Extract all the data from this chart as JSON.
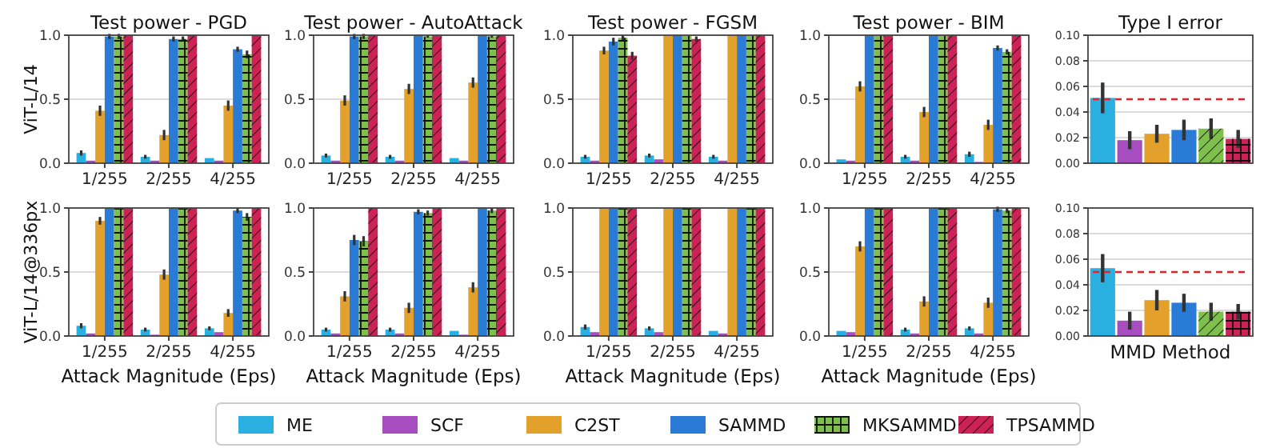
{
  "chart_data": [
    {
      "type": "bar",
      "title": "Test power - PGD",
      "ylabel": "ViT-L/14",
      "categories": [
        "1/255",
        "2/255",
        "4/255"
      ],
      "ylim": [
        0,
        1
      ],
      "yticks": [
        {
          "value": 0,
          "label": "0.0"
        },
        0.5,
        {
          "value": 1,
          "label": "1.0"
        }
      ],
      "grid": "y",
      "legend": "bottom",
      "series": [
        {
          "name": "ME",
          "color": "#2ab0e0",
          "values": [
            0.08,
            0.05,
            0.04
          ],
          "errors": [
            0.02,
            0.015,
            null
          ]
        },
        {
          "name": "SCF",
          "color": "#a64dbf",
          "values": [
            0.02,
            0.02,
            0.02
          ]
        },
        {
          "name": "C2ST",
          "color": "#e3a02a",
          "values": [
            0.41,
            0.22,
            0.45
          ],
          "errors": [
            0.04,
            0.04,
            0.04
          ]
        },
        {
          "name": "SAMMD",
          "color": "#2a7bd6",
          "values": [
            0.99,
            0.97,
            0.89
          ],
          "errors": [
            0.02,
            0.02,
            0.02
          ]
        },
        {
          "name": "MKSAMMD",
          "color": "#7fbf4d",
          "values": [
            0.99,
            0.97,
            0.85
          ],
          "errors": [
            0.02,
            0.02,
            0.03
          ]
        },
        {
          "name": "TPSAMMD",
          "color": "#cc2255",
          "values": [
            1,
            1,
            1
          ]
        }
      ]
    },
    {
      "type": "bar",
      "title": "Test power - AutoAttack",
      "categories": [
        "1/255",
        "2/255",
        "4/255"
      ],
      "ylim": [
        0,
        1
      ],
      "yticks": [
        {
          "value": 0,
          "label": "0.0"
        },
        0.5,
        {
          "value": 1,
          "label": "1.0"
        }
      ],
      "grid": "y",
      "series": [
        {
          "color": "#2ab0e0",
          "values": [
            0.06,
            0.05,
            0.04
          ],
          "errors": [
            0.015,
            0.015,
            null
          ]
        },
        {
          "color": "#a64dbf",
          "values": [
            0.02,
            0.02,
            0.02
          ]
        },
        {
          "color": "#e3a02a",
          "values": [
            0.49,
            0.58,
            0.63
          ],
          "errors": [
            0.04,
            0.04,
            0.04
          ]
        },
        {
          "color": "#2a7bd6",
          "values": [
            0.99,
            1,
            1
          ],
          "errors": [
            0.02,
            null,
            null
          ]
        },
        {
          "color": "#7fbf4d",
          "values": [
            0.99,
            0.99,
            0.99
          ],
          "errors": [
            0.02,
            0.01,
            0.01
          ]
        },
        {
          "color": "#cc2255",
          "values": [
            1,
            1,
            1
          ]
        }
      ]
    },
    {
      "type": "bar",
      "title": "Test power - FGSM",
      "categories": [
        "1/255",
        "2/255",
        "4/255"
      ],
      "ylim": [
        0,
        1
      ],
      "yticks": [
        {
          "value": 0,
          "label": "0.0"
        },
        0.5,
        {
          "value": 1,
          "label": "1.0"
        }
      ],
      "grid": "y",
      "series": [
        {
          "color": "#2ab0e0",
          "values": [
            0.05,
            0.06,
            0.05
          ],
          "errors": [
            0.015,
            0.015,
            0.015
          ]
        },
        {
          "color": "#a64dbf",
          "values": [
            0.02,
            0.03,
            0.02
          ]
        },
        {
          "color": "#e3a02a",
          "values": [
            0.88,
            1,
            1
          ],
          "errors": [
            0.03,
            null,
            null
          ]
        },
        {
          "color": "#2a7bd6",
          "values": [
            0.95,
            1,
            1
          ],
          "errors": [
            0.03,
            null,
            null
          ]
        },
        {
          "color": "#7fbf4d",
          "values": [
            0.98,
            1,
            1
          ],
          "errors": [
            0.02,
            null,
            null
          ]
        },
        {
          "color": "#cc2255",
          "values": [
            0.84,
            0.97,
            1
          ],
          "errors": [
            0.03,
            0.02,
            null
          ]
        }
      ]
    },
    {
      "type": "bar",
      "title": "Test power - BIM",
      "categories": [
        "1/255",
        "2/255",
        "4/255"
      ],
      "ylim": [
        0,
        1
      ],
      "yticks": [
        {
          "value": 0,
          "label": "0.0"
        },
        0.5,
        {
          "value": 1,
          "label": "1.0"
        }
      ],
      "grid": "y",
      "series": [
        {
          "color": "#2ab0e0",
          "values": [
            0.03,
            0.05,
            0.07
          ],
          "errors": [
            null,
            0.015,
            0.02
          ]
        },
        {
          "color": "#a64dbf",
          "values": [
            0.02,
            0.02,
            0.01
          ]
        },
        {
          "color": "#e3a02a",
          "values": [
            0.6,
            0.4,
            0.3
          ],
          "errors": [
            0.04,
            0.04,
            0.04
          ]
        },
        {
          "color": "#2a7bd6",
          "values": [
            1,
            1,
            0.9
          ],
          "errors": [
            null,
            null,
            0.02
          ]
        },
        {
          "color": "#7fbf4d",
          "values": [
            1,
            1,
            0.87
          ],
          "errors": [
            null,
            null,
            0.02
          ]
        },
        {
          "color": "#cc2255",
          "values": [
            1,
            1,
            1
          ]
        }
      ]
    },
    {
      "type": "bar",
      "title": "Type I error",
      "categories": [
        null,
        null,
        null,
        null,
        null,
        null
      ],
      "ylim": [
        0,
        0.1
      ],
      "yticks": [
        {
          "value": 0,
          "label": "0.00"
        },
        0.02,
        0.04,
        0.06,
        0.08,
        {
          "value": 0.1,
          "label": "0.10"
        }
      ],
      "grid": "y",
      "values": [
        0.051,
        0.018,
        0.023,
        0.026,
        0.027,
        0.019
      ],
      "errors": [
        0.012,
        0.007,
        0.007,
        0.008,
        0.008,
        0.007
      ],
      "colors": [
        "#2ab0e0",
        "#a64dbf",
        "#e3a02a",
        "#2a7bd6",
        "#7fbf4d",
        "#cc2255"
      ],
      "ref_lines": [
        {
          "axis": "y",
          "value": 0.05,
          "color": "#e8202a",
          "line_style": "dashed"
        }
      ]
    },
    {
      "type": "bar",
      "ylabel": "ViT-L/14@336px",
      "xlabel": "Attack Magnitude (Eps)",
      "categories": [
        "1/255",
        "2/255",
        "4/255"
      ],
      "ylim": [
        0,
        1
      ],
      "yticks": [
        {
          "value": 0,
          "label": "0.0"
        },
        0.5,
        {
          "value": 1,
          "label": "1.0"
        }
      ],
      "grid": "y",
      "series": [
        {
          "color": "#2ab0e0",
          "values": [
            0.08,
            0.05,
            0.06
          ],
          "errors": [
            0.02,
            0.015,
            0.015
          ]
        },
        {
          "color": "#a64dbf",
          "values": [
            0.02,
            0.01,
            0.03
          ]
        },
        {
          "color": "#e3a02a",
          "values": [
            0.9,
            0.48,
            0.18
          ],
          "errors": [
            0.03,
            0.04,
            0.03
          ]
        },
        {
          "color": "#2a7bd6",
          "values": [
            1,
            1,
            0.98
          ],
          "errors": [
            null,
            null,
            0.02
          ]
        },
        {
          "color": "#7fbf4d",
          "values": [
            1,
            1,
            0.93
          ],
          "errors": [
            null,
            null,
            0.03
          ]
        },
        {
          "color": "#cc2255",
          "values": [
            1,
            1,
            1
          ]
        }
      ]
    },
    {
      "type": "bar",
      "xlabel": "Attack Magnitude (Eps)",
      "categories": [
        "1/255",
        "2/255",
        "4/255"
      ],
      "ylim": [
        0,
        1
      ],
      "yticks": [
        {
          "value": 0,
          "label": "0.0"
        },
        0.5,
        {
          "value": 1,
          "label": "1.0"
        }
      ],
      "grid": "y",
      "series": [
        {
          "color": "#2ab0e0",
          "values": [
            0.05,
            0.05,
            0.04
          ],
          "errors": [
            0.015,
            0.015,
            null
          ]
        },
        {
          "color": "#a64dbf",
          "values": [
            0.02,
            0.02,
            0.01
          ]
        },
        {
          "color": "#e3a02a",
          "values": [
            0.31,
            0.22,
            0.38
          ],
          "errors": [
            0.04,
            0.04,
            0.04
          ]
        },
        {
          "color": "#2a7bd6",
          "values": [
            0.75,
            0.97,
            1
          ],
          "errors": [
            0.04,
            0.02,
            null
          ]
        },
        {
          "color": "#7fbf4d",
          "values": [
            0.74,
            0.96,
            0.98
          ],
          "errors": [
            0.04,
            0.02,
            0.02
          ]
        },
        {
          "color": "#cc2255",
          "values": [
            1,
            1,
            1
          ]
        }
      ]
    },
    {
      "type": "bar",
      "xlabel": "Attack Magnitude (Eps)",
      "categories": [
        "1/255",
        "2/255",
        "4/255"
      ],
      "ylim": [
        0,
        1
      ],
      "yticks": [
        {
          "value": 0,
          "label": "0.0"
        },
        0.5,
        {
          "value": 1,
          "label": "1.0"
        }
      ],
      "grid": "y",
      "series": [
        {
          "color": "#2ab0e0",
          "values": [
            0.07,
            0.06,
            0.04
          ],
          "errors": [
            0.02,
            0.015,
            null
          ]
        },
        {
          "color": "#a64dbf",
          "values": [
            0.03,
            0.03,
            0.02
          ]
        },
        {
          "color": "#e3a02a",
          "values": [
            1,
            1,
            1
          ]
        },
        {
          "color": "#2a7bd6",
          "values": [
            1,
            1,
            1
          ]
        },
        {
          "color": "#7fbf4d",
          "values": [
            1,
            1,
            1
          ]
        },
        {
          "color": "#cc2255",
          "values": [
            1,
            1,
            1
          ]
        }
      ]
    },
    {
      "type": "bar",
      "xlabel": "Attack Magnitude (Eps)",
      "categories": [
        "1/255",
        "2/255",
        "4/255"
      ],
      "ylim": [
        0,
        1
      ],
      "yticks": [
        {
          "value": 0,
          "label": "0.0"
        },
        0.5,
        {
          "value": 1,
          "label": "1.0"
        }
      ],
      "grid": "y",
      "series": [
        {
          "color": "#2ab0e0",
          "values": [
            0.04,
            0.05,
            0.06
          ],
          "errors": [
            null,
            0.015,
            0.015
          ]
        },
        {
          "color": "#a64dbf",
          "values": [
            0.03,
            0.02,
            0.02
          ]
        },
        {
          "color": "#e3a02a",
          "values": [
            0.7,
            0.27,
            0.26
          ],
          "errors": [
            0.04,
            0.04,
            0.04
          ]
        },
        {
          "color": "#2a7bd6",
          "values": [
            1,
            1,
            0.99
          ],
          "errors": [
            null,
            null,
            0.02
          ]
        },
        {
          "color": "#7fbf4d",
          "values": [
            1,
            1,
            0.98
          ],
          "errors": [
            null,
            null,
            0.02
          ]
        },
        {
          "color": "#cc2255",
          "values": [
            1,
            1,
            1
          ]
        }
      ]
    },
    {
      "type": "bar",
      "xlabel": "MMD Method",
      "categories": [
        null,
        null,
        null,
        null,
        null,
        null
      ],
      "ylim": [
        0,
        0.1
      ],
      "yticks": [
        {
          "value": 0,
          "label": "0.00"
        },
        0.02,
        0.04,
        0.06,
        0.08,
        {
          "value": 0.1,
          "label": "0.10"
        }
      ],
      "grid": "y",
      "values": [
        0.053,
        0.012,
        0.028,
        0.026,
        0.019,
        0.019
      ],
      "errors": [
        0.011,
        0.007,
        0.008,
        0.007,
        0.007,
        0.006
      ],
      "colors": [
        "#2ab0e0",
        "#a64dbf",
        "#e3a02a",
        "#2a7bd6",
        "#7fbf4d",
        "#cc2255"
      ],
      "ref_lines": [
        {
          "axis": "y",
          "value": 0.05,
          "color": "#e8202a",
          "line_style": "dashed"
        }
      ]
    }
  ]
}
